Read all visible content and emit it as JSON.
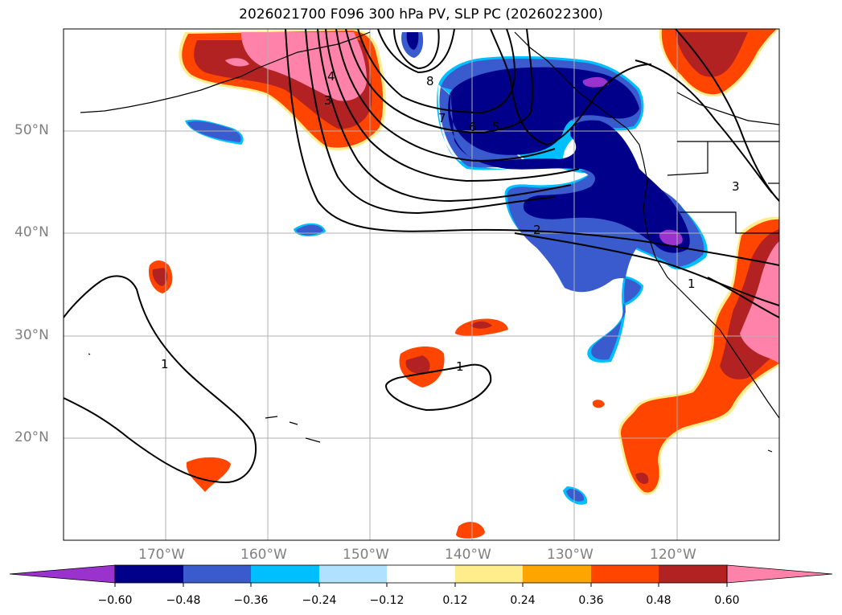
{
  "title": "2026021700 F096 300 hPa PV, SLP PC (2026022300)",
  "colors": {
    "pv_neg_extreme": "#9a32cd",
    "pv_neg_060": "#00008b",
    "pv_neg_048": "#3a5bcd",
    "pv_neg_036": "#00bfff",
    "pv_neg_024": "#b0e2ff",
    "pv_neutral": "#ffffff",
    "pv_pos_012": "#ffec8b",
    "pv_pos_024": "#ffa500",
    "pv_pos_036": "#ff4500",
    "pv_pos_048": "#b22222",
    "pv_pos_060": "#ff82ab",
    "contour": "#000000",
    "grid": "#b0b0b0",
    "coast": "#000000"
  },
  "axes": {
    "lat_labels": [
      "50°N",
      "40°N",
      "30°N",
      "20°N"
    ],
    "lon_labels": [
      "170°W",
      "160°W",
      "150°W",
      "140°W",
      "130°W",
      "120°W"
    ]
  },
  "colorbar": {
    "ticks": [
      "−0.60",
      "−0.48",
      "−0.36",
      "−0.24",
      "−0.12",
      "0.12",
      "0.24",
      "0.36",
      "0.48",
      "0.60"
    ],
    "bins": [
      "#00008b",
      "#3a5bcd",
      "#00bfff",
      "#b0e2ff",
      "#ffffff",
      "#ffec8b",
      "#ffa500",
      "#ff4500",
      "#b22222"
    ]
  },
  "contour_labels": [
    "8",
    "7",
    "6",
    "5",
    "4",
    "3",
    "3",
    "2",
    "1",
    "1",
    "1",
    "3"
  ]
}
